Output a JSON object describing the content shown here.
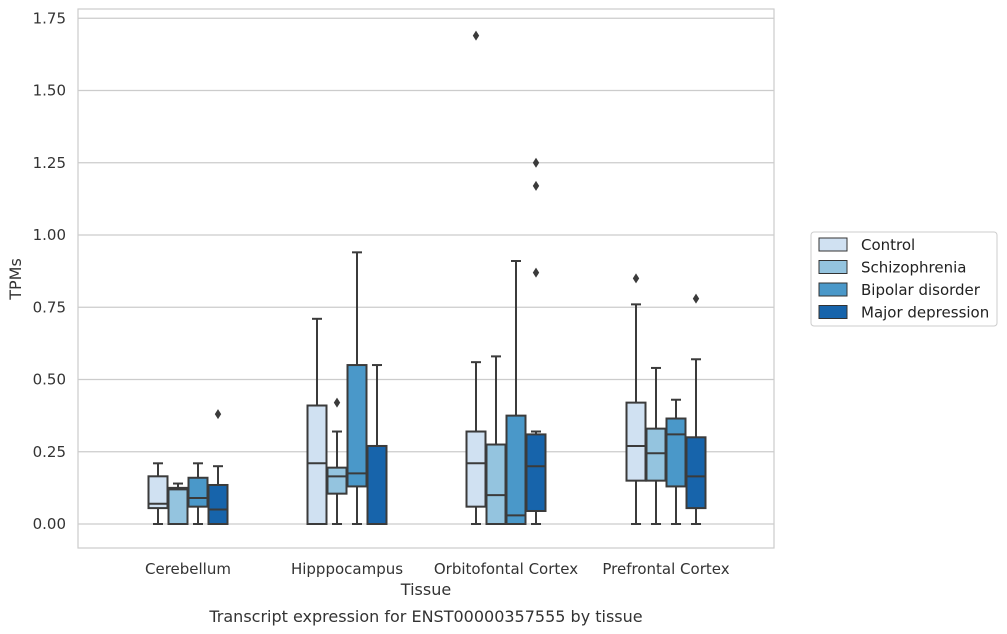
{
  "chart_data": {
    "type": "box",
    "title": "Transcript expression for ENST00000357555 by tissue",
    "xlabel": "Tissue",
    "ylabel": "TPMs",
    "ylim": [
      -0.08,
      1.76
    ],
    "yticks": [
      "0.00",
      "0.25",
      "0.50",
      "0.75",
      "1.00",
      "1.25",
      "1.50",
      "1.75"
    ],
    "ytick_values": [
      0,
      0.25,
      0.5,
      0.75,
      1.0,
      1.25,
      1.5,
      1.75
    ],
    "grid": "horizontal",
    "legend_position": "right",
    "categories": [
      "Cerebellum",
      "Hipppocampus",
      "Orbitofontal Cortex",
      "Prefrontal Cortex"
    ],
    "series": [
      {
        "name": "Control",
        "color": "#d0e1f2",
        "boxes": [
          {
            "whisker_low": 0.0,
            "q1": 0.055,
            "median": 0.07,
            "q3": 0.165,
            "whisker_high": 0.21,
            "outliers": []
          },
          {
            "whisker_low": 0.0,
            "q1": 0.0,
            "median": 0.21,
            "q3": 0.41,
            "whisker_high": 0.71,
            "outliers": []
          },
          {
            "whisker_low": 0.0,
            "q1": 0.06,
            "median": 0.21,
            "q3": 0.32,
            "whisker_high": 0.56,
            "outliers": [
              1.69
            ]
          },
          {
            "whisker_low": 0.0,
            "q1": 0.15,
            "median": 0.27,
            "q3": 0.42,
            "whisker_high": 0.76,
            "outliers": [
              0.85
            ]
          }
        ]
      },
      {
        "name": "Schizophrenia",
        "color": "#94c4df",
        "boxes": [
          {
            "whisker_low": 0.0,
            "q1": 0.0,
            "median": 0.12,
            "q3": 0.125,
            "whisker_high": 0.14,
            "outliers": []
          },
          {
            "whisker_low": 0.0,
            "q1": 0.105,
            "median": 0.165,
            "q3": 0.195,
            "whisker_high": 0.32,
            "outliers": [
              0.42
            ]
          },
          {
            "whisker_low": 0.0,
            "q1": 0.0,
            "median": 0.1,
            "q3": 0.275,
            "whisker_high": 0.58,
            "outliers": []
          },
          {
            "whisker_low": 0.0,
            "q1": 0.15,
            "median": 0.245,
            "q3": 0.33,
            "whisker_high": 0.54,
            "outliers": []
          }
        ]
      },
      {
        "name": "Bipolar disorder",
        "color": "#4a98c9",
        "boxes": [
          {
            "whisker_low": 0.0,
            "q1": 0.06,
            "median": 0.09,
            "q3": 0.16,
            "whisker_high": 0.21,
            "outliers": []
          },
          {
            "whisker_low": 0.0,
            "q1": 0.13,
            "median": 0.175,
            "q3": 0.55,
            "whisker_high": 0.94,
            "outliers": []
          },
          {
            "whisker_low": 0.0,
            "q1": 0.0,
            "median": 0.03,
            "q3": 0.375,
            "whisker_high": 0.91,
            "outliers": []
          },
          {
            "whisker_low": 0.0,
            "q1": 0.13,
            "median": 0.31,
            "q3": 0.365,
            "whisker_high": 0.43,
            "outliers": []
          }
        ]
      },
      {
        "name": "Major depression",
        "color": "#1764ab",
        "boxes": [
          {
            "whisker_low": 0.0,
            "q1": 0.0,
            "median": 0.05,
            "q3": 0.135,
            "whisker_high": 0.2,
            "outliers": [
              0.38
            ]
          },
          {
            "whisker_low": 0.0,
            "q1": 0.0,
            "median": 0.27,
            "q3": 0.27,
            "whisker_high": 0.55,
            "outliers": []
          },
          {
            "whisker_low": 0.0,
            "q1": 0.045,
            "median": 0.2,
            "q3": 0.31,
            "whisker_high": 0.32,
            "outliers": [
              0.87,
              1.17,
              1.25
            ]
          },
          {
            "whisker_low": 0.0,
            "q1": 0.055,
            "median": 0.165,
            "q3": 0.3,
            "whisker_high": 0.57,
            "outliers": [
              0.78
            ]
          }
        ]
      }
    ]
  }
}
